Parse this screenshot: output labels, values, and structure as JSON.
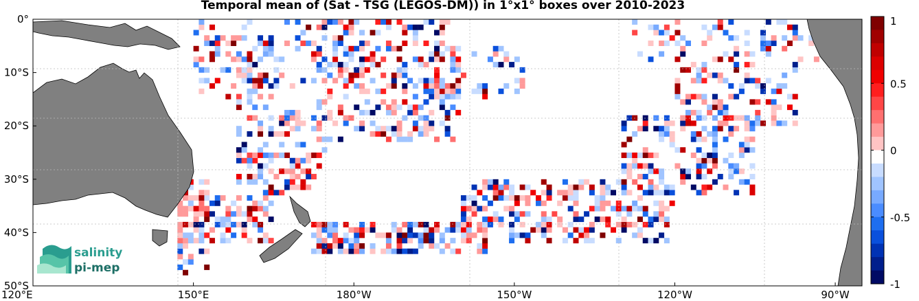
{
  "title": "Temporal mean of (Sat - TSG (LEGOS-DM)) in 1°x1° boxes over 2010-2023",
  "map": {
    "lon_range": [
      120,
      275
    ],
    "lat_range": [
      -50,
      0
    ],
    "grid_cell_deg": 1,
    "land_color": "#808080",
    "ocean_color": "#ffffff",
    "x_ticks": [
      {
        "lon": 120,
        "label": "120°E"
      },
      {
        "lon": 150,
        "label": "150°E"
      },
      {
        "lon": 180,
        "label": "180°W"
      },
      {
        "lon": 210,
        "label": "150°W"
      },
      {
        "lon": 240,
        "label": "120°W"
      },
      {
        "lon": 270,
        "label": "90°W"
      }
    ],
    "y_ticks": [
      {
        "lat": 0,
        "label": "0°"
      },
      {
        "lat": -10,
        "label": "10°S"
      },
      {
        "lat": -20,
        "label": "20°S"
      },
      {
        "lat": -30,
        "label": "30°S"
      },
      {
        "lat": -40,
        "label": "40°S"
      },
      {
        "lat": -50,
        "label": "50°S"
      }
    ]
  },
  "colorbar": {
    "range": [
      -1,
      1
    ],
    "levels": 20,
    "ticks": [
      {
        "value": 1,
        "label": "1"
      },
      {
        "value": 0.5,
        "label": "0.5"
      },
      {
        "value": 0,
        "label": "0"
      },
      {
        "value": -0.5,
        "label": "-0.5"
      },
      {
        "value": -1,
        "label": "-1"
      }
    ],
    "colors_top_to_bottom": [
      "#7f0000",
      "#a00000",
      "#c00000",
      "#dc0000",
      "#f00000",
      "#ff1e1e",
      "#ff4646",
      "#ff7070",
      "#ff9a9a",
      "#ffc4c4",
      "#ffffff",
      "#c8dcff",
      "#a0c4ff",
      "#78aaff",
      "#4a8cff",
      "#1e6ef0",
      "#0a50dc",
      "#0032b4",
      "#001e8c",
      "#000a64"
    ]
  },
  "logo": {
    "line1": "salinity",
    "line2": "pi-mep"
  }
}
